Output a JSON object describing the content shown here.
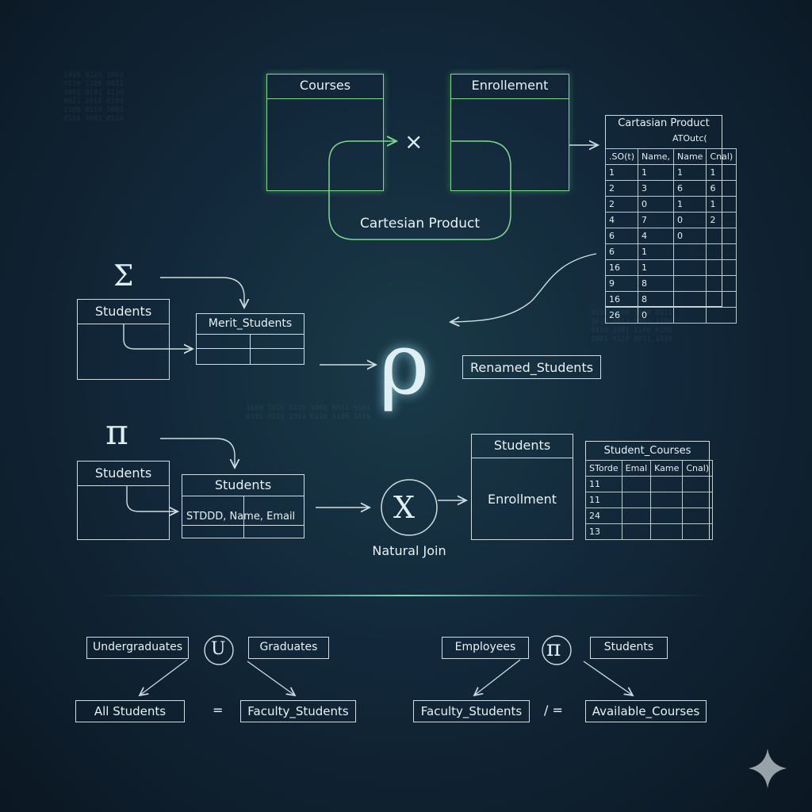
{
  "cartesian": {
    "courses_title": "Courses",
    "enrollment_title": "Enrollement",
    "operator": "×",
    "caption": "Cartesian Product"
  },
  "result_table": {
    "title": "Cartasian Product",
    "subheader": "ATOutc(",
    "columns": [
      ".SO(t)",
      "Name,",
      "Name",
      "Cnal)"
    ],
    "rows": [
      [
        "1",
        "1",
        "1",
        "1"
      ],
      [
        "2",
        "3",
        "6",
        "6"
      ],
      [
        "2",
        "0",
        "1",
        "1"
      ],
      [
        "4",
        "7",
        "0",
        "2"
      ],
      [
        "6",
        "4",
        "0",
        ""
      ],
      [
        "6",
        "1",
        "",
        ""
      ],
      [
        "16",
        "1",
        "",
        ""
      ],
      [
        "9",
        "8",
        "",
        ""
      ],
      [
        "16",
        "8",
        "",
        ""
      ],
      [
        "26",
        "0",
        "",
        ""
      ]
    ]
  },
  "selection": {
    "symbol": "Σ",
    "source": "Students",
    "target": "Merit_Students"
  },
  "rename": {
    "symbol": "ρ",
    "target": "Renamed_Students"
  },
  "projection": {
    "symbol": "π",
    "source": "Students",
    "target_title": "Students",
    "target_cols": "STDDD, Name, Email"
  },
  "natural_join": {
    "symbol": "X",
    "caption": "Natural Join",
    "students_title": "Students",
    "enrollment_label": "Enrollment"
  },
  "student_courses": {
    "title": "Student_Courses",
    "columns": [
      "STorde",
      "Emal",
      "Kame",
      "Cnal)"
    ],
    "rows": [
      [
        "11",
        "",
        "",
        ""
      ],
      [
        "11",
        "",
        "",
        ""
      ],
      [
        "24",
        "",
        "",
        ""
      ],
      [
        "13",
        "",
        "",
        ""
      ]
    ]
  },
  "union": {
    "left": "Undergraduates",
    "symbol": "U",
    "right": "Graduates",
    "result_left": "All Students",
    "equals": "=",
    "result_right": "Faculty_Students"
  },
  "difference": {
    "left": "Employees",
    "symbol": "π",
    "right": "Students",
    "result_left": "Faculty_Students",
    "equals": "/ =",
    "result_right": "Available_Courses"
  }
}
